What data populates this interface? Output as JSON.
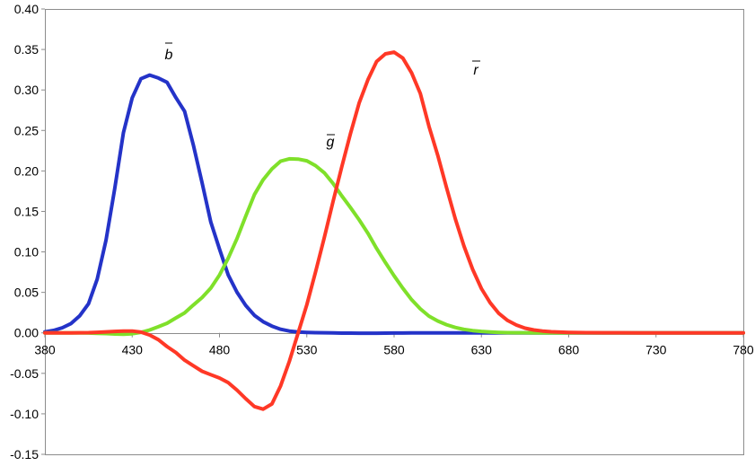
{
  "chart_data": {
    "type": "line",
    "title": "",
    "xlabel": "",
    "ylabel": "",
    "xlim": [
      380,
      780
    ],
    "ylim": [
      -0.15,
      0.4
    ],
    "xticks": [
      380,
      430,
      480,
      530,
      580,
      630,
      680,
      730,
      780
    ],
    "xtick_labels": [
      "380",
      "430",
      "480",
      "530",
      "580",
      "630",
      "680",
      "730",
      "780"
    ],
    "yticks": [
      0.4,
      0.35,
      0.3,
      0.25,
      0.2,
      0.15,
      0.1,
      0.05,
      0.0,
      -0.05,
      -0.1,
      -0.15
    ],
    "ytick_labels": [
      "0.40",
      "0.35",
      "0.30",
      "0.25",
      "0.20",
      "0.15",
      "0.10",
      "0.05",
      "0.00",
      "-0.05",
      "-0.10",
      "-0.15"
    ],
    "grid": "none",
    "x": [
      380,
      385,
      390,
      395,
      400,
      405,
      410,
      415,
      420,
      425,
      430,
      435,
      440,
      445,
      450,
      455,
      460,
      465,
      470,
      475,
      480,
      485,
      490,
      495,
      500,
      505,
      510,
      515,
      520,
      525,
      530,
      535,
      540,
      545,
      550,
      555,
      560,
      565,
      570,
      575,
      580,
      585,
      590,
      595,
      600,
      605,
      610,
      615,
      620,
      625,
      630,
      635,
      640,
      645,
      650,
      655,
      660,
      665,
      670,
      675,
      680,
      690,
      700,
      710,
      720,
      730,
      740,
      750,
      760,
      770,
      780
    ],
    "series": [
      {
        "name": "b",
        "color": "#2433c8",
        "values": [
          0.0012,
          0.003,
          0.0063,
          0.0116,
          0.0212,
          0.036,
          0.0665,
          0.1146,
          0.1781,
          0.2473,
          0.2903,
          0.3138,
          0.3184,
          0.3147,
          0.3094,
          0.2906,
          0.2737,
          0.2323,
          0.1853,
          0.1369,
          0.1035,
          0.0715,
          0.0502,
          0.0338,
          0.0216,
          0.0138,
          0.0083,
          0.0045,
          0.0023,
          0.0011,
          0.0006,
          0.0002,
          0.0001,
          0,
          -0.0003,
          -0.0003,
          -0.0004,
          -0.0004,
          -0.0004,
          -0.0003,
          -0.0002,
          -0.0002,
          -0.0001,
          -0.0001,
          0,
          0,
          0,
          0,
          0,
          0,
          0,
          0,
          0,
          0,
          0,
          0,
          0,
          0,
          0,
          0,
          0,
          0,
          0,
          0,
          0,
          0,
          0,
          0,
          0,
          0,
          0
        ]
      },
      {
        "name": "g",
        "color": "#7fe02a",
        "values": [
          0,
          0,
          0,
          0,
          -0.0001,
          -0.0002,
          -0.0005,
          -0.0009,
          -0.0014,
          -0.0017,
          -0.0011,
          0.0006,
          0.0036,
          0.0076,
          0.0119,
          0.0184,
          0.0247,
          0.0343,
          0.0436,
          0.0553,
          0.0714,
          0.0922,
          0.1165,
          0.1441,
          0.1708,
          0.1891,
          0.2025,
          0.2121,
          0.2149,
          0.2146,
          0.2125,
          0.2065,
          0.1977,
          0.1847,
          0.1694,
          0.1547,
          0.1395,
          0.123,
          0.1043,
          0.0869,
          0.0704,
          0.0551,
          0.0409,
          0.0296,
          0.0207,
          0.0147,
          0.0101,
          0.0067,
          0.0043,
          0.0028,
          0.0018,
          0.0011,
          0.0006,
          0.0003,
          0.0001,
          0.0001,
          0,
          0,
          0,
          0,
          0,
          0,
          0,
          0,
          0,
          0,
          0,
          0,
          0,
          0,
          0
        ]
      },
      {
        "name": "r",
        "color": "#ff3826",
        "values": [
          0,
          0,
          0,
          0,
          0.0001,
          0.0003,
          0.0007,
          0.0012,
          0.0018,
          0.0022,
          0.0023,
          0.0009,
          -0.0026,
          -0.0084,
          -0.0169,
          -0.0243,
          -0.0337,
          -0.0405,
          -0.0474,
          -0.0516,
          -0.0558,
          -0.0614,
          -0.0707,
          -0.0812,
          -0.091,
          -0.0942,
          -0.0878,
          -0.0654,
          -0.0352,
          -0.0004,
          0.0348,
          0.0752,
          0.1175,
          0.1618,
          0.2046,
          0.2461,
          0.284,
          0.3125,
          0.3351,
          0.3446,
          0.3467,
          0.3394,
          0.3211,
          0.2957,
          0.2549,
          0.2194,
          0.1798,
          0.1411,
          0.1073,
          0.0784,
          0.0546,
          0.0372,
          0.024,
          0.0153,
          0.0097,
          0.0058,
          0.0036,
          0.0022,
          0.0014,
          0.0009,
          0.0006,
          0.0003,
          0.0001,
          0.0001,
          0,
          0,
          0,
          0,
          0,
          0,
          0
        ]
      }
    ]
  }
}
